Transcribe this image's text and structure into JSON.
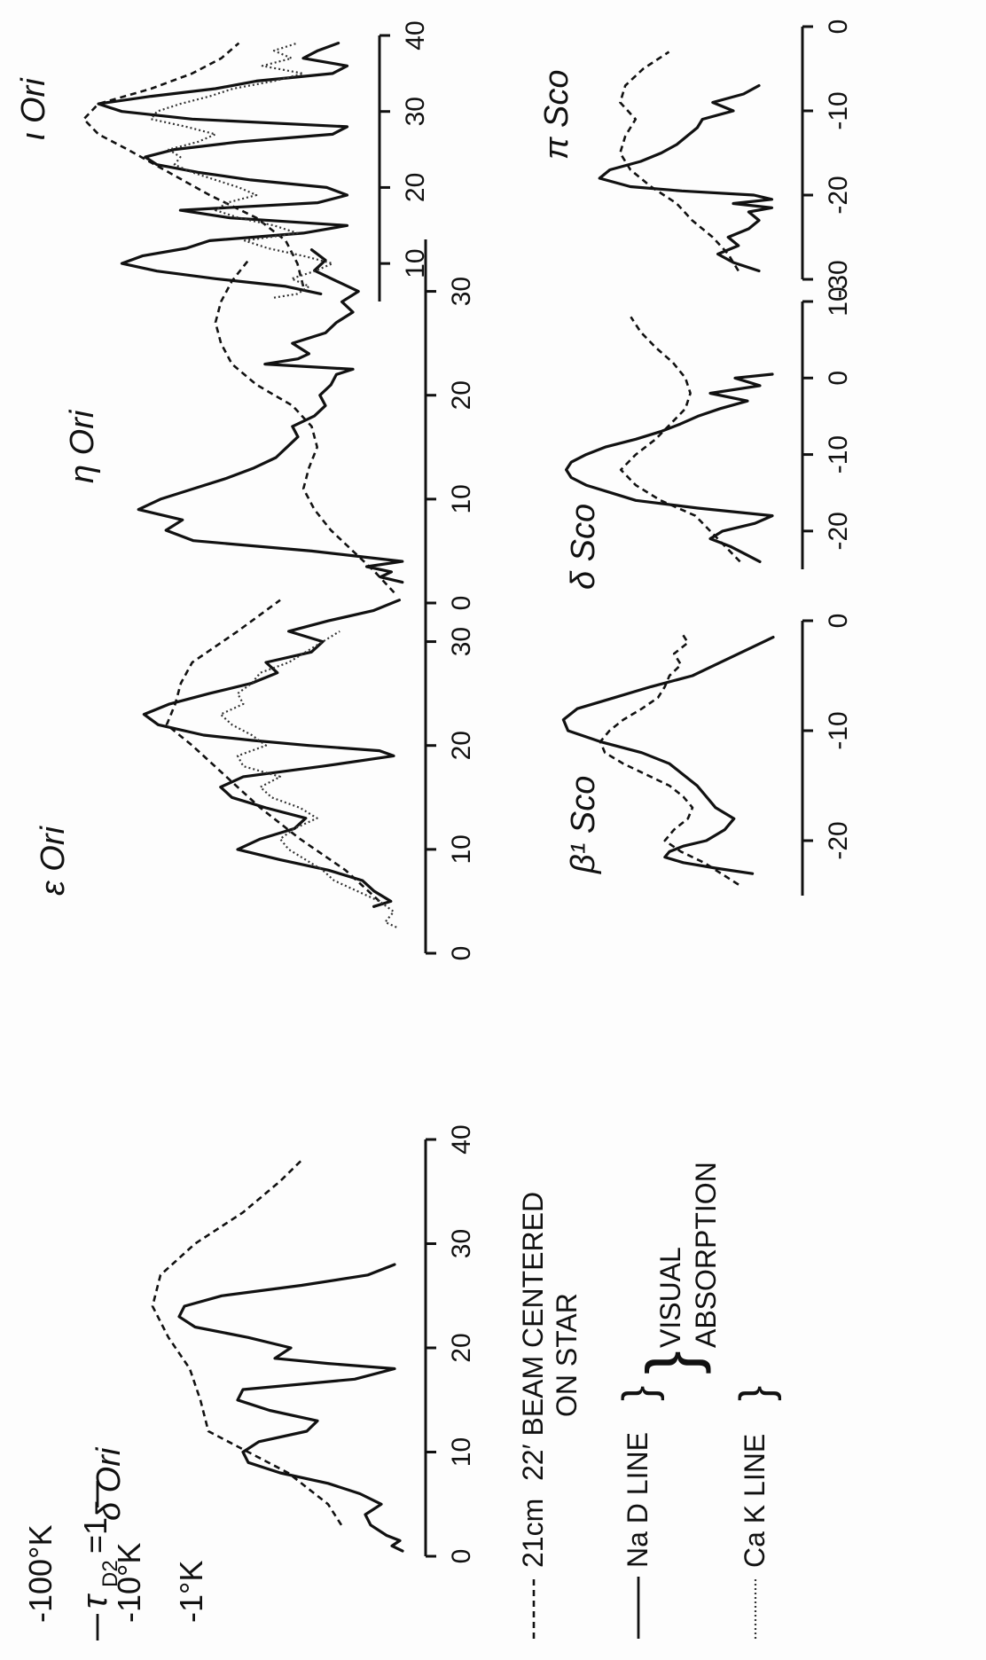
{
  "figure": {
    "temperature_labels": [
      "-100°K",
      "-10°K",
      "-1°K"
    ],
    "tau_label": "τ",
    "tau_subscript": "D2",
    "tau_value": "=1",
    "legend": {
      "row1_label": "21cm",
      "row1_description": "22′ BEAM CENTERED",
      "row1_description_2": "ON STAR",
      "row2_label": "Na D LINE",
      "row3_label": "Ca K LINE",
      "group_label_1": "VISUAL",
      "group_label_2": "ABSORPTION"
    },
    "colors": {
      "ink": "#111111",
      "background": "#fdfdfd"
    }
  },
  "chart_data": [
    {
      "type": "line",
      "title": "δ Ori",
      "xlabel": "",
      "ylabel": "",
      "xlim": [
        0,
        40
      ],
      "x_ticks": [
        "0",
        "10",
        "20",
        "30",
        "40"
      ],
      "series": [
        {
          "name": "21cm",
          "x": [
            3,
            5,
            8,
            10,
            12,
            15,
            18,
            21,
            24,
            27,
            30,
            33,
            36,
            38
          ],
          "values": [
            0.25,
            0.3,
            0.45,
            0.6,
            0.75,
            0.78,
            0.82,
            0.9,
            0.96,
            0.93,
            0.8,
            0.62,
            0.48,
            0.4
          ]
        },
        {
          "name": "Na D LINE",
          "x": [
            0.5,
            1,
            1.5,
            2,
            3,
            4,
            5,
            6,
            7,
            8,
            9,
            10,
            11,
            12,
            13,
            14,
            15,
            16,
            17,
            18,
            18.5,
            19,
            20,
            21,
            22,
            23,
            24,
            25,
            26,
            27,
            28
          ],
          "values": [
            0.02,
            0.06,
            0.03,
            0.08,
            0.14,
            0.16,
            0.1,
            0.18,
            0.3,
            0.48,
            0.6,
            0.62,
            0.56,
            0.38,
            0.34,
            0.52,
            0.64,
            0.62,
            0.2,
            0.05,
            0.3,
            0.5,
            0.44,
            0.6,
            0.8,
            0.86,
            0.84,
            0.7,
            0.4,
            0.15,
            0.05
          ]
        }
      ]
    },
    {
      "type": "line",
      "title": "ε Ori",
      "xlabel": "",
      "ylabel": "",
      "xlim": [
        0,
        35
      ],
      "x_ticks": [
        "0",
        "10",
        "20",
        "30"
      ],
      "series": [
        {
          "name": "21cm",
          "x": [
            5,
            8,
            11,
            14,
            17,
            20,
            22,
            24,
            26,
            28,
            31,
            34
          ],
          "values": [
            0.1,
            0.22,
            0.38,
            0.52,
            0.64,
            0.76,
            0.85,
            0.82,
            0.8,
            0.76,
            0.6,
            0.45
          ]
        },
        {
          "name": "Na D LINE",
          "x": [
            4.5,
            5,
            6,
            7,
            8,
            9,
            10,
            11,
            12,
            13,
            14,
            15,
            16,
            17,
            18,
            19,
            19.5,
            20,
            20.5,
            21,
            22,
            23,
            24,
            25,
            26,
            27,
            28,
            29,
            30,
            31,
            32,
            33,
            34
          ],
          "values": [
            0.12,
            0.06,
            0.12,
            0.16,
            0.28,
            0.45,
            0.6,
            0.52,
            0.4,
            0.36,
            0.5,
            0.62,
            0.66,
            0.58,
            0.3,
            0.05,
            0.1,
            0.35,
            0.55,
            0.72,
            0.88,
            0.93,
            0.84,
            0.7,
            0.55,
            0.46,
            0.5,
            0.34,
            0.3,
            0.42,
            0.28,
            0.12,
            0.03
          ]
        },
        {
          "name": "Ca K LINE",
          "x": [
            2.5,
            3,
            4,
            5,
            6,
            7,
            8,
            9,
            10,
            11,
            12,
            13,
            14,
            15,
            16,
            17,
            18,
            19,
            20,
            21,
            22,
            23,
            24,
            25,
            26,
            27,
            28,
            29,
            30,
            31
          ],
          "values": [
            0.04,
            0.08,
            0.05,
            0.1,
            0.18,
            0.26,
            0.3,
            0.36,
            0.42,
            0.45,
            0.4,
            0.32,
            0.38,
            0.48,
            0.52,
            0.45,
            0.58,
            0.6,
            0.5,
            0.55,
            0.62,
            0.66,
            0.58,
            0.6,
            0.55,
            0.52,
            0.42,
            0.36,
            0.3,
            0.24
          ]
        }
      ]
    },
    {
      "type": "line",
      "title": "η Ori",
      "xlabel": "",
      "ylabel": "",
      "xlim": [
        0,
        35
      ],
      "x_ticks": [
        "0",
        "10",
        "20",
        "30"
      ],
      "series": [
        {
          "name": "21cm",
          "x": [
            1,
            3,
            5,
            7,
            9,
            11,
            13,
            15,
            17,
            19,
            21,
            23,
            25,
            27,
            29,
            31,
            33
          ],
          "values": [
            0.05,
            0.12,
            0.2,
            0.28,
            0.34,
            0.38,
            0.36,
            0.33,
            0.35,
            0.42,
            0.55,
            0.64,
            0.68,
            0.7,
            0.68,
            0.64,
            0.58
          ]
        },
        {
          "name": "Na D LINE",
          "x": [
            2,
            2.5,
            3,
            3.5,
            4,
            5,
            6,
            7,
            8,
            9,
            10,
            11,
            12,
            13,
            14,
            15,
            16,
            17,
            18,
            19,
            20,
            21,
            22,
            22.5,
            23,
            23.5,
            24,
            25,
            26,
            27,
            28,
            29,
            30,
            31,
            32,
            33,
            34
          ],
          "values": [
            0.02,
            0.1,
            0.06,
            0.15,
            0.02,
            0.35,
            0.78,
            0.88,
            0.82,
            0.98,
            0.9,
            0.78,
            0.66,
            0.56,
            0.48,
            0.44,
            0.4,
            0.42,
            0.34,
            0.3,
            0.32,
            0.28,
            0.26,
            0.2,
            0.52,
            0.4,
            0.36,
            0.42,
            0.3,
            0.26,
            0.2,
            0.24,
            0.18,
            0.26,
            0.34,
            0.3,
            0.35
          ]
        }
      ]
    },
    {
      "type": "line",
      "title": "ι Ori",
      "xlabel": "",
      "ylabel": "",
      "xlim": [
        5,
        40
      ],
      "x_ticks": [
        "10",
        "20",
        "30",
        "40"
      ],
      "series": [
        {
          "name": "21cm",
          "x": [
            7,
            10,
            13,
            16,
            19,
            22,
            25,
            27,
            29,
            31,
            33,
            35,
            37,
            39
          ],
          "values": [
            0.2,
            0.22,
            0.26,
            0.36,
            0.52,
            0.66,
            0.8,
            0.9,
            0.95,
            0.9,
            0.72,
            0.58,
            0.48,
            0.42
          ]
        },
        {
          "name": "Na D LINE",
          "x": [
            6,
            7,
            8,
            9,
            10,
            11,
            12,
            13,
            14,
            15,
            16,
            17,
            18,
            19,
            20,
            21,
            22,
            23,
            24,
            25,
            26,
            27,
            28,
            29,
            30,
            31,
            32,
            33,
            34,
            35,
            36,
            37,
            38,
            39
          ],
          "values": [
            0.14,
            0.26,
            0.5,
            0.7,
            0.82,
            0.75,
            0.6,
            0.52,
            0.2,
            0.05,
            0.45,
            0.62,
            0.15,
            0.05,
            0.12,
            0.38,
            0.56,
            0.7,
            0.74,
            0.64,
            0.42,
            0.1,
            0.05,
            0.58,
            0.82,
            0.9,
            0.72,
            0.5,
            0.36,
            0.1,
            0.05,
            0.2,
            0.15,
            0.08
          ]
        },
        {
          "name": "Ca K LINE",
          "x": [
            5.5,
            6,
            7,
            8,
            9,
            10,
            11,
            12,
            13,
            14,
            15,
            16,
            17,
            18,
            19,
            20,
            21,
            22,
            23,
            24,
            25,
            26,
            27,
            28,
            29,
            30,
            31,
            32,
            33,
            34,
            35,
            36,
            37,
            38,
            39
          ],
          "values": [
            0.3,
            0.22,
            0.18,
            0.24,
            0.16,
            0.1,
            0.2,
            0.32,
            0.4,
            0.22,
            0.3,
            0.42,
            0.5,
            0.46,
            0.36,
            0.42,
            0.5,
            0.58,
            0.64,
            0.62,
            0.66,
            0.56,
            0.5,
            0.6,
            0.72,
            0.7,
            0.62,
            0.52,
            0.44,
            0.3,
            0.2,
            0.34,
            0.24,
            0.3,
            0.22
          ]
        }
      ]
    },
    {
      "type": "line",
      "title": "β¹ Sco",
      "xlabel": "",
      "ylabel": "",
      "xlim": [
        -25,
        0
      ],
      "x_ticks": [
        "-20",
        "-10",
        "0"
      ],
      "series": [
        {
          "name": "21cm",
          "x": [
            -24,
            -22,
            -21,
            -20,
            -19,
            -18,
            -17,
            -16,
            -15,
            -14,
            -13,
            -12,
            -11,
            -10,
            -9,
            -8,
            -7,
            -6,
            -5,
            -4,
            -3,
            -2,
            -1
          ],
          "values": [
            0.2,
            0.35,
            0.45,
            0.52,
            0.48,
            0.42,
            0.4,
            0.44,
            0.5,
            0.6,
            0.7,
            0.78,
            0.8,
            0.76,
            0.7,
            0.62,
            0.55,
            0.52,
            0.5,
            0.45,
            0.48,
            0.42,
            0.45
          ]
        },
        {
          "name": "Na D LINE",
          "x": [
            -23,
            -22.5,
            -22,
            -21.5,
            -21,
            -20.5,
            -20,
            -19,
            -18,
            -17,
            -16,
            -15,
            -14,
            -13,
            -12,
            -11,
            -10,
            -9,
            -8,
            -7,
            -6,
            -5,
            -4,
            -3,
            -2,
            -1.5
          ],
          "values": [
            0.14,
            0.3,
            0.44,
            0.52,
            0.5,
            0.44,
            0.34,
            0.26,
            0.22,
            0.3,
            0.34,
            0.38,
            0.44,
            0.5,
            0.62,
            0.8,
            0.94,
            0.96,
            0.9,
            0.74,
            0.58,
            0.4,
            0.3,
            0.2,
            0.1,
            0.05
          ]
        }
      ]
    },
    {
      "type": "line",
      "title": "δ Sco",
      "xlabel": "",
      "ylabel": "",
      "xlim": [
        -25,
        10
      ],
      "x_ticks": [
        "-20",
        "-10",
        "0",
        "10"
      ],
      "series": [
        {
          "name": "21cm",
          "x": [
            -24,
            -22,
            -20,
            -18,
            -16,
            -14,
            -12,
            -10,
            -8,
            -6,
            -4,
            -2,
            0,
            2,
            4,
            6,
            8
          ],
          "values": [
            0.18,
            0.24,
            0.3,
            0.36,
            0.5,
            0.6,
            0.66,
            0.6,
            0.52,
            0.46,
            0.4,
            0.38,
            0.4,
            0.45,
            0.52,
            0.58,
            0.62
          ]
        },
        {
          "name": "Na D LINE",
          "x": [
            -24,
            -23,
            -22,
            -21,
            -20,
            -19,
            -18,
            -17,
            -16,
            -15,
            -14,
            -13,
            -12,
            -11,
            -10,
            -9,
            -8,
            -7,
            -6,
            -5,
            -4,
            -3,
            -2,
            -1,
            0,
            0.5
          ],
          "values": [
            0.1,
            0.16,
            0.22,
            0.3,
            0.25,
            0.12,
            0.05,
            0.35,
            0.6,
            0.7,
            0.8,
            0.86,
            0.88,
            0.86,
            0.8,
            0.72,
            0.6,
            0.5,
            0.42,
            0.35,
            0.26,
            0.15,
            0.3,
            0.1,
            0.2,
            0.05
          ]
        }
      ]
    },
    {
      "type": "line",
      "title": "π Sco",
      "xlabel": "",
      "ylabel": "",
      "xlim": [
        -30,
        0
      ],
      "x_ticks": [
        "-30",
        "-20",
        "-10",
        "0"
      ],
      "series": [
        {
          "name": "21cm",
          "x": [
            -29,
            -27,
            -25,
            -23,
            -21,
            -19,
            -17,
            -15,
            -13,
            -11,
            -9,
            -7,
            -5,
            -3
          ],
          "values": [
            0.18,
            0.22,
            0.28,
            0.36,
            0.42,
            0.52,
            0.6,
            0.64,
            0.62,
            0.58,
            0.64,
            0.62,
            0.55,
            0.45
          ]
        },
        {
          "name": "Na D LINE",
          "x": [
            -29,
            -28,
            -27,
            -26,
            -25,
            -24,
            -23,
            -22,
            -21.5,
            -21,
            -20.5,
            -20,
            -19.5,
            -19,
            -18,
            -17,
            -16,
            -15,
            -14,
            -13,
            -12,
            -11,
            -10,
            -9,
            -8,
            -7
          ],
          "values": [
            0.1,
            0.2,
            0.26,
            0.18,
            0.22,
            0.14,
            0.1,
            0.14,
            0.05,
            0.2,
            0.05,
            0.12,
            0.4,
            0.6,
            0.72,
            0.68,
            0.56,
            0.48,
            0.42,
            0.38,
            0.34,
            0.32,
            0.2,
            0.28,
            0.16,
            0.1
          ]
        }
      ]
    }
  ]
}
